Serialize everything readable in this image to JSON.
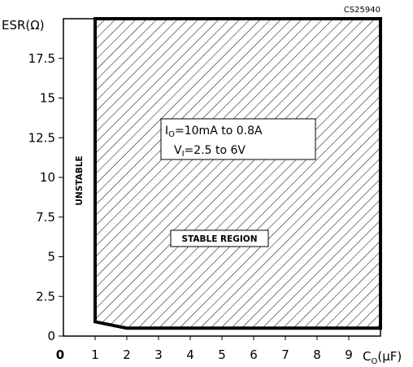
{
  "figure_code": "CS25940",
  "chart_data": {
    "type": "area",
    "ylabel": "ESR(Ω)",
    "xlabel_main": "C",
    "xlabel_sub": "O",
    "xlabel_unit": "(μF)",
    "xlim": [
      0,
      10
    ],
    "ylim": [
      0,
      20
    ],
    "x_ticks": [
      0,
      1,
      2,
      3,
      4,
      5,
      6,
      7,
      8,
      9
    ],
    "x_tick_labels": [
      "0",
      "1",
      "2",
      "3",
      "4",
      "5",
      "6",
      "7",
      "8",
      "9"
    ],
    "y_ticks": [
      0,
      2.5,
      5,
      7.5,
      10,
      12.5,
      15,
      17.5
    ],
    "y_tick_labels": [
      "0",
      "2.5",
      "5",
      "7.5",
      "10",
      "12.5",
      "15",
      "17.5"
    ],
    "stable_region_boundary": {
      "x": [
        1,
        1,
        10,
        10,
        2,
        1
      ],
      "y": [
        20,
        0.9,
        0.5,
        20,
        0.5,
        0.9
      ],
      "polygon": [
        [
          1,
          20
        ],
        [
          10,
          20
        ],
        [
          10,
          0.5
        ],
        [
          2,
          0.5
        ],
        [
          1,
          0.9
        ]
      ]
    },
    "annotations": {
      "conditions_line1": "I",
      "conditions_line1_sub": "O",
      "conditions_line1_rest": "=10mA  to  0.8A",
      "conditions_line2": "V",
      "conditions_line2_sub": "I",
      "conditions_line2_rest": "=2.5  to  6V",
      "stable_label": "STABLE REGION",
      "unstable_label": "UNSTABLE"
    },
    "grid": false
  }
}
